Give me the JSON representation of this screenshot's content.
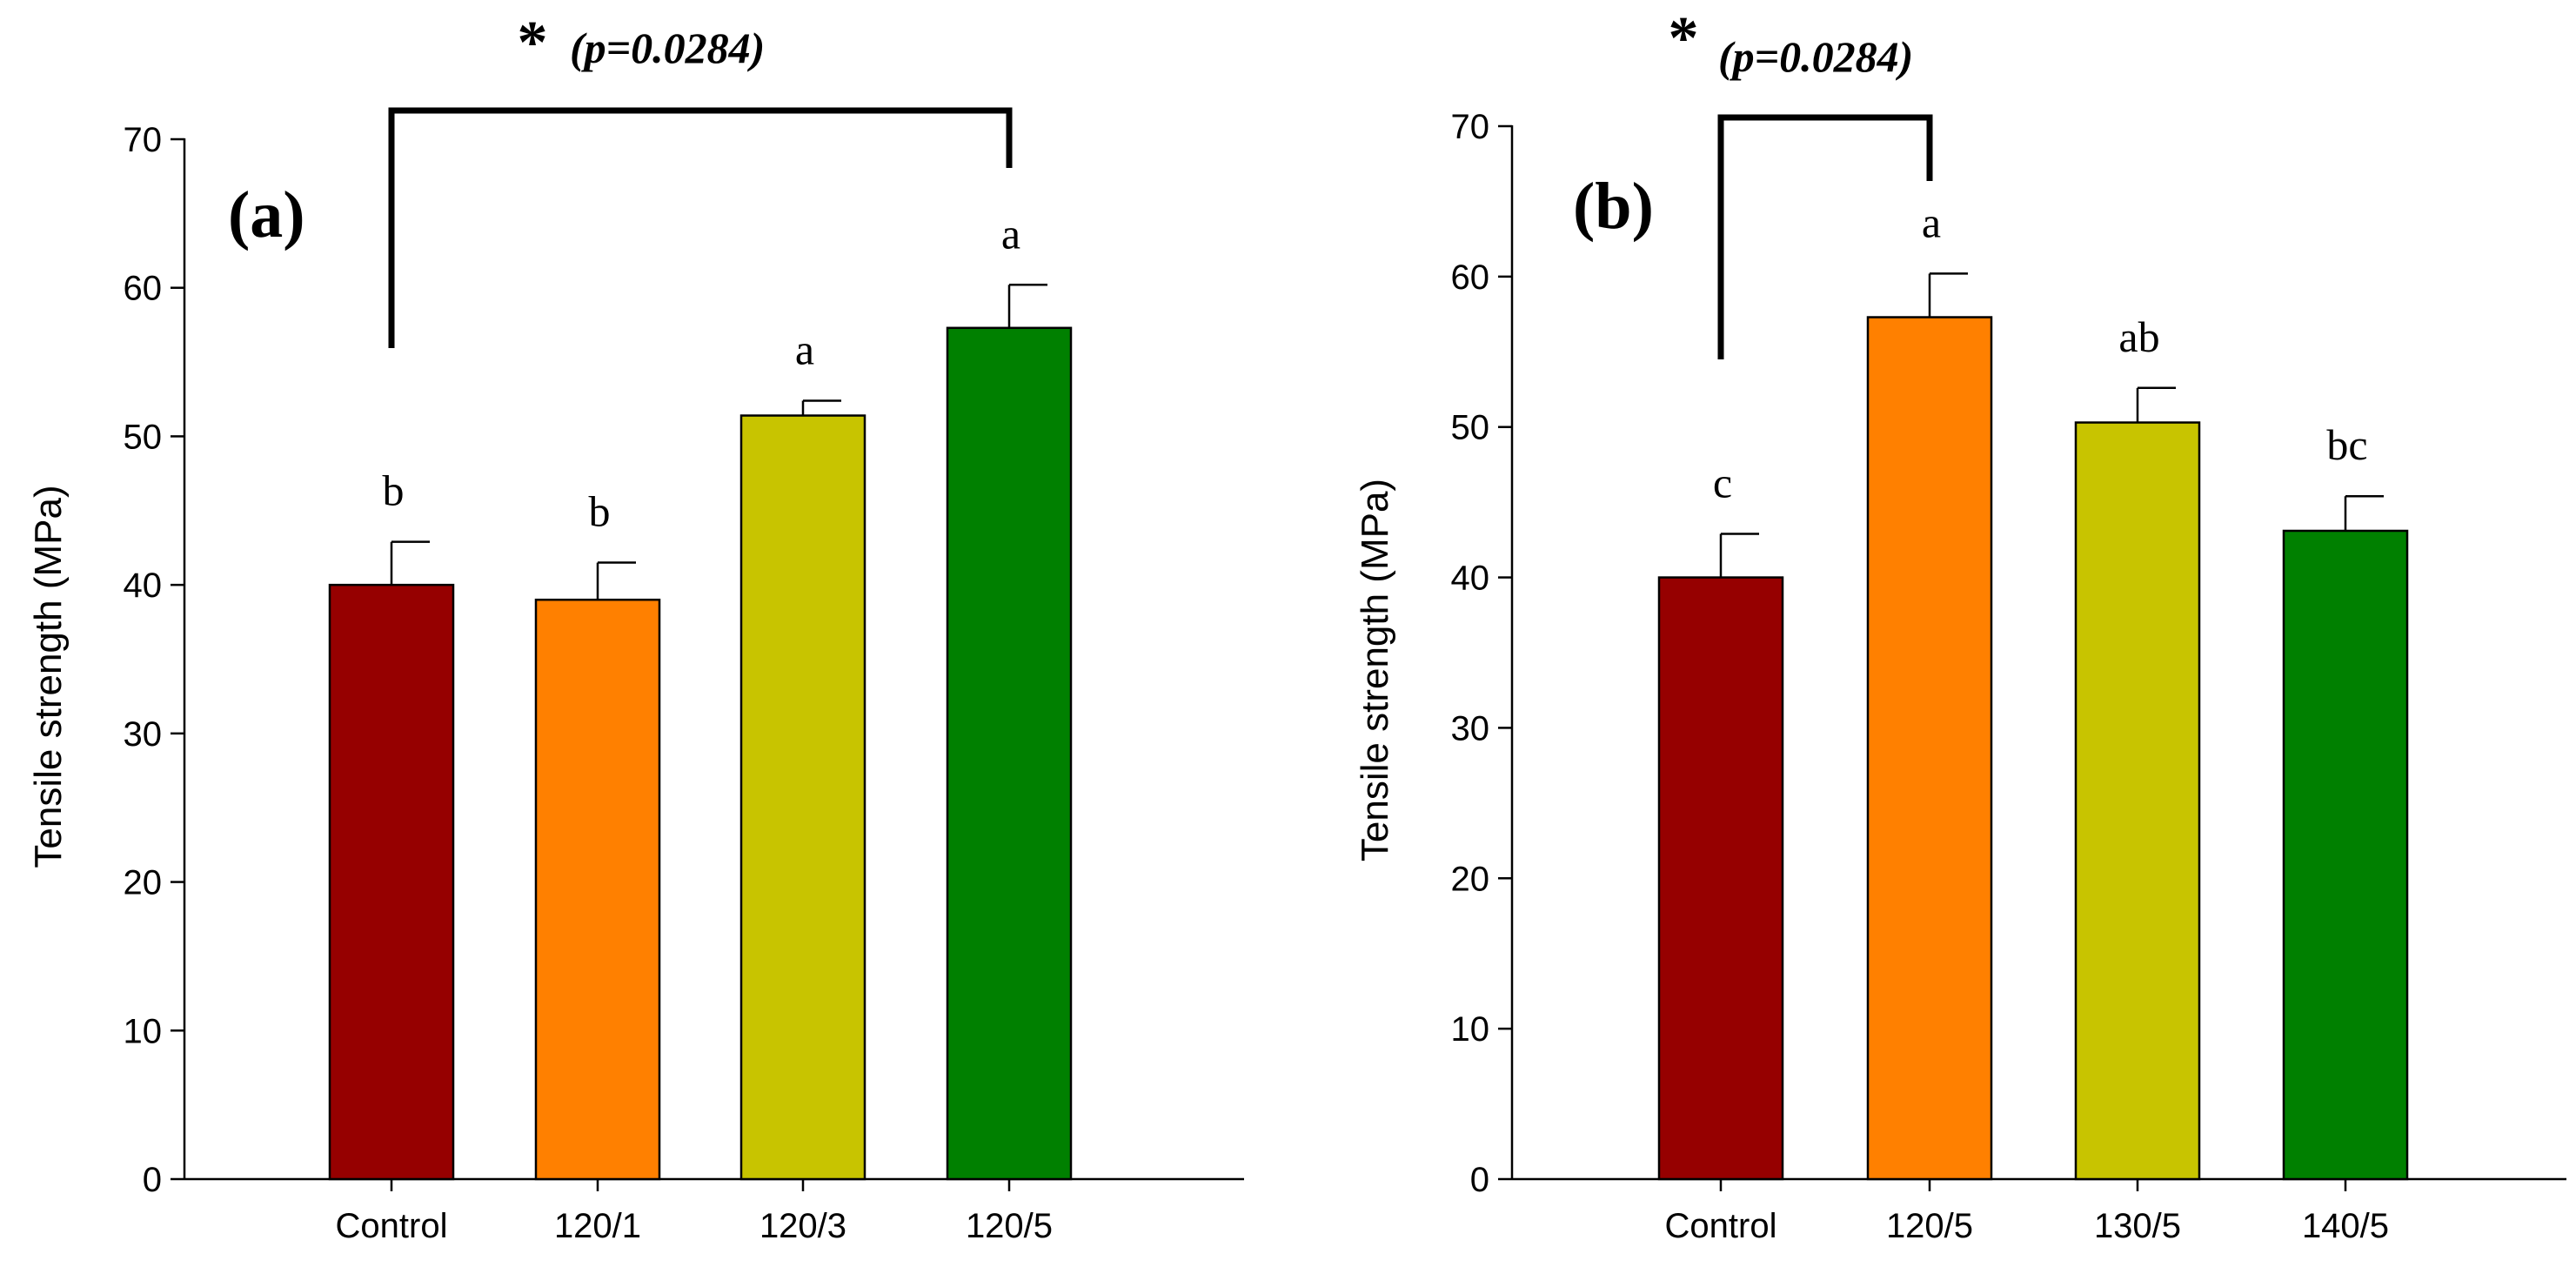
{
  "chart_data": [
    {
      "type": "bar",
      "panel_label": "(a)",
      "categories": [
        "Control",
        "120/1",
        "120/3",
        "120/5"
      ],
      "values": [
        40.0,
        39.0,
        51.4,
        57.3
      ],
      "errors": [
        2.9,
        2.5,
        1.0,
        2.9
      ],
      "bar_colors": [
        "#960000",
        "#FF8000",
        "#C8C400",
        "#008000"
      ],
      "letters": [
        "b",
        "b",
        "a",
        "a"
      ],
      "ylabel": "Tensile strength (MPa)",
      "xlabel": "",
      "ylim": [
        0,
        70
      ],
      "yticks": [
        "0",
        "10",
        "20",
        "30",
        "40",
        "50",
        "60",
        "70"
      ],
      "significance": {
        "from": 0,
        "to": 3,
        "star": "*",
        "text": "(p=0.0284)"
      }
    },
    {
      "type": "bar",
      "panel_label": "(b)",
      "categories": [
        "Control",
        "120/5",
        "130/5",
        "140/5"
      ],
      "values": [
        40.0,
        57.3,
        50.3,
        43.1
      ],
      "errors": [
        2.9,
        2.9,
        2.3,
        2.3
      ],
      "bar_colors": [
        "#960000",
        "#FF8000",
        "#C8C400",
        "#008000"
      ],
      "letters": [
        "c",
        "a",
        "ab",
        "bc"
      ],
      "ylabel": "Tensile strength (MPa)",
      "xlabel": "",
      "ylim": [
        0,
        70
      ],
      "yticks": [
        "0",
        "10",
        "20",
        "30",
        "40",
        "50",
        "60",
        "70"
      ],
      "significance": {
        "from": 0,
        "to": 1,
        "star": "*",
        "text": "(p=0.0284)"
      }
    }
  ]
}
